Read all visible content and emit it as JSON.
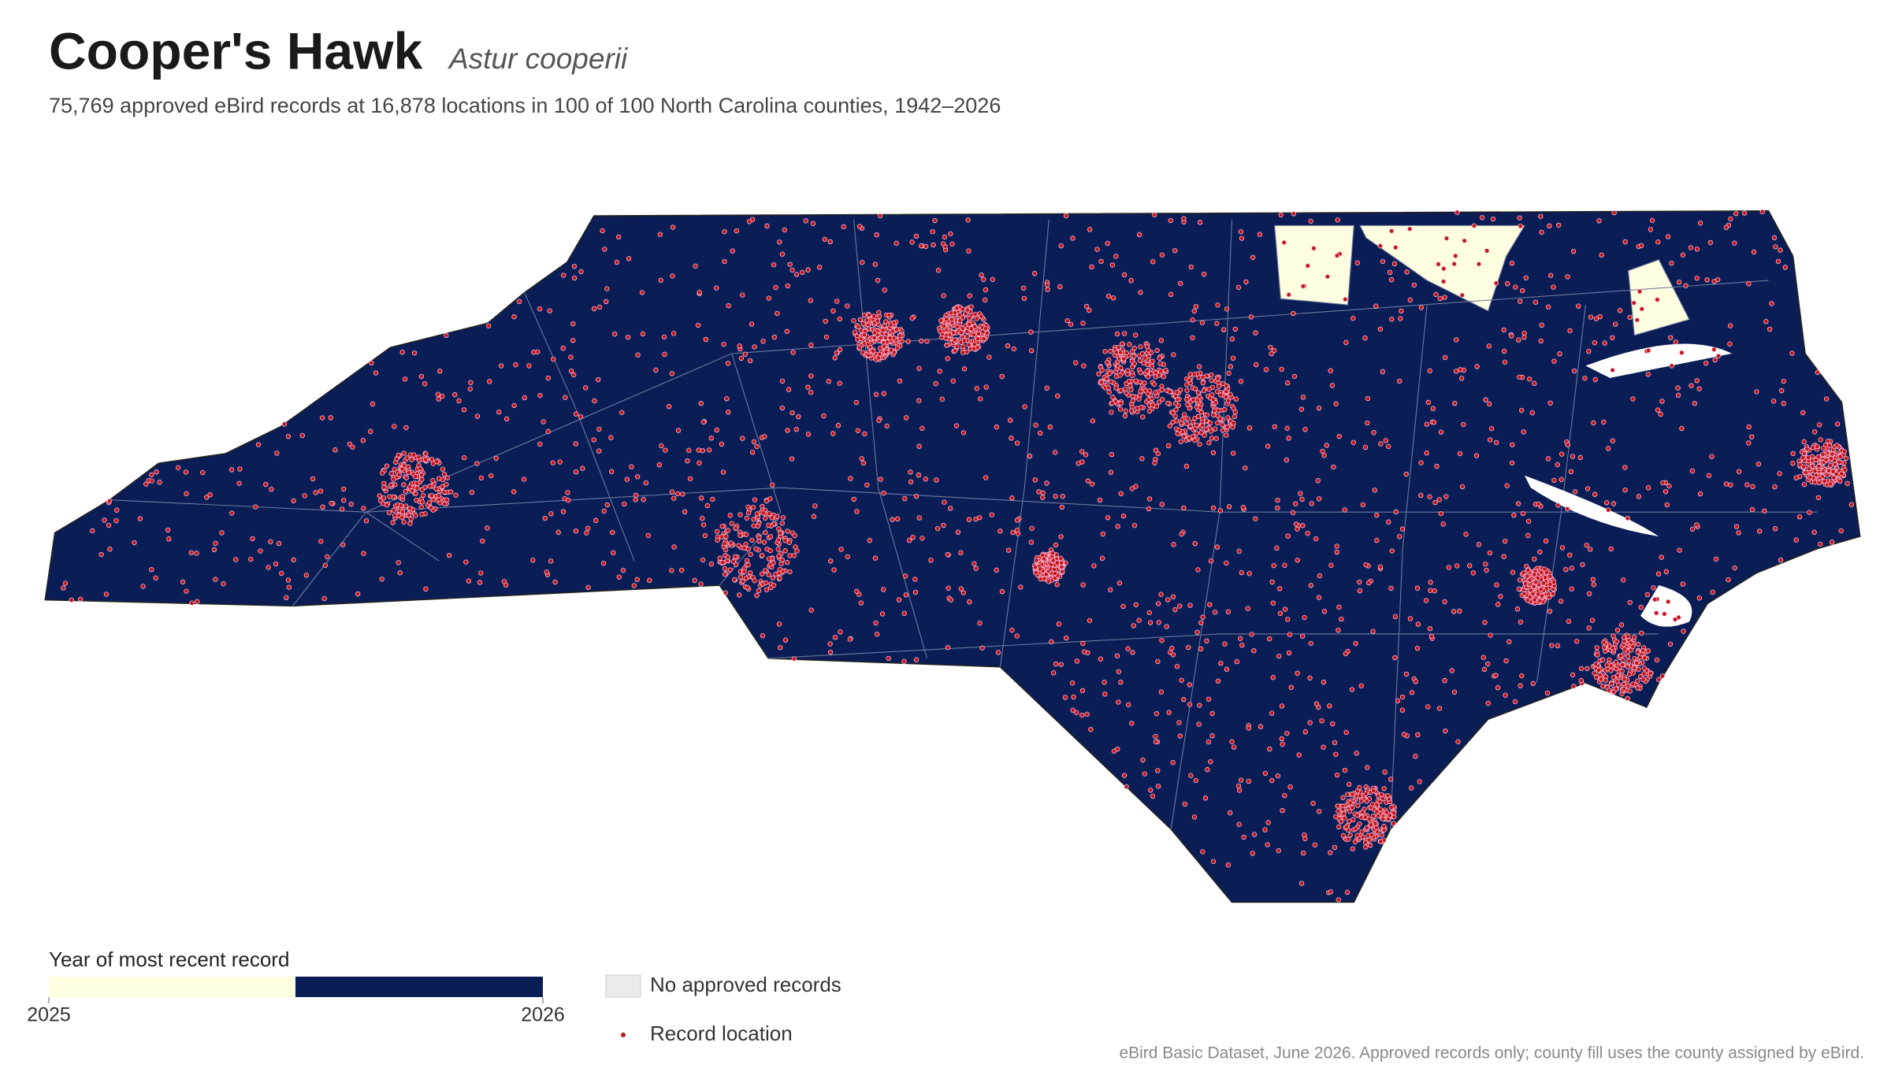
{
  "header": {
    "title": "Cooper's Hawk",
    "scientific_name": "Astur cooperii",
    "subtitle": "75,769 approved eBird records at 16,878 locations in 100 of 100 North Carolina counties, 1942–2026"
  },
  "legend": {
    "title": "Year of most recent record",
    "scale": {
      "ticks": [
        2025,
        2026
      ],
      "colors": [
        "#fffde0",
        "#0b1d55"
      ]
    },
    "items": [
      {
        "label": "No approved records",
        "color": "#ebebeb"
      },
      {
        "label": "Record location",
        "color": "#c0161a"
      }
    ]
  },
  "caption": "eBird Basic Dataset, June 2026. Approved records only; county fill uses the county assigned by eBird."
}
